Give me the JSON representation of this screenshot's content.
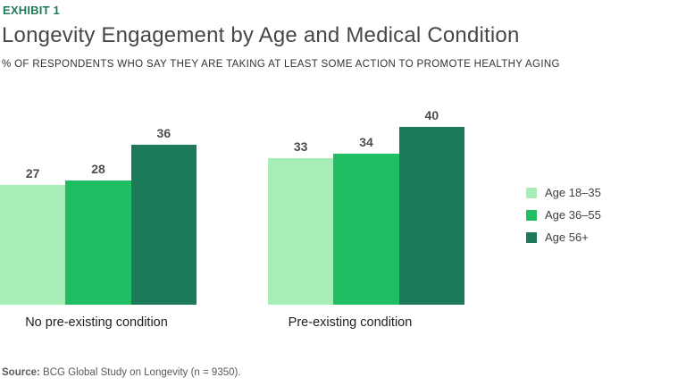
{
  "exhibit_label": "EXHIBIT 1",
  "title": "Longevity Engagement by Age and Medical Condition",
  "subtitle": "% OF RESPONDENTS WHO SAY THEY ARE TAKING AT LEAST SOME ACTION TO PROMOTE HEALTHY AGING",
  "source": {
    "label": "Source:",
    "text": " BCG Global Study on Longevity (n = 9350)."
  },
  "colors": {
    "accent_green": "#1E7B57",
    "series_light": "#A6EDB8",
    "series_medium": "#21BD62",
    "series_dark": "#1D7A58",
    "value_label": "#4D4D4D"
  },
  "chart_data": {
    "type": "bar",
    "categories": [
      "No pre-existing condition",
      "Pre-existing condition"
    ],
    "series": [
      {
        "name": "Age 18–35",
        "values": [
          27,
          33
        ],
        "color": "#A6EDB8"
      },
      {
        "name": "Age 36–55",
        "values": [
          28,
          34
        ],
        "color": "#21BD62"
      },
      {
        "name": "Age 56+",
        "values": [
          36,
          40
        ],
        "color": "#1D7A58"
      }
    ],
    "title": "Longevity Engagement by Age and Medical Condition",
    "xlabel": "",
    "ylabel": "% of respondents",
    "ylim": [
      0,
      45
    ],
    "grid": false,
    "legend_position": "right",
    "value_labels": true
  }
}
